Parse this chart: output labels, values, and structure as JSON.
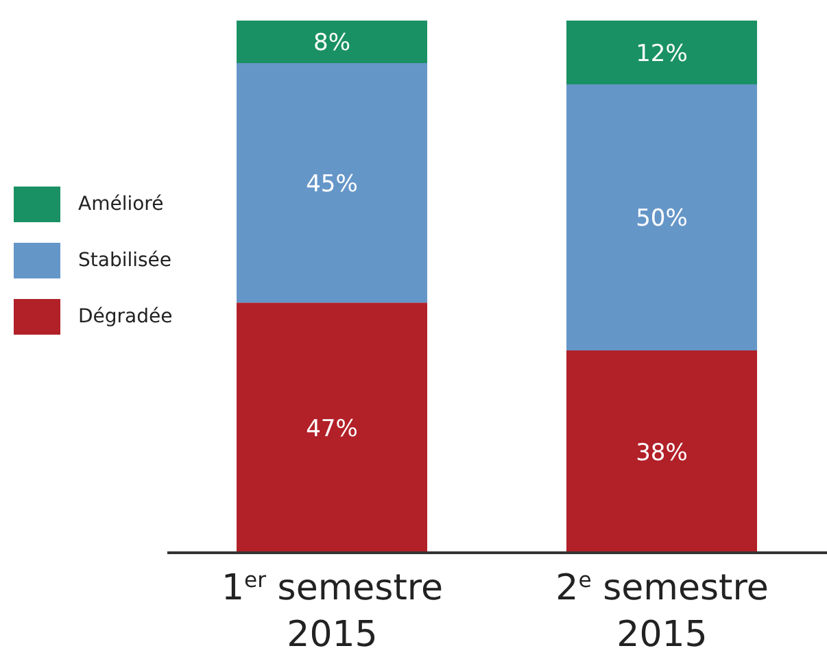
{
  "chart_data": {
    "type": "bar",
    "stacked": true,
    "legend": "left",
    "categories": [
      "1$^{er}$ semestre 2015",
      "2$^{e}$ semestre 2015"
    ],
    "series": [
      {
        "name": "Dégradée",
        "color": "#b22028",
        "values": [
          47,
          38
        ],
        "value_labels": [
          "47%",
          "38%"
        ]
      },
      {
        "name": "Stabilisée",
        "color": "#6596c8",
        "values": [
          45,
          50
        ],
        "value_labels": [
          "45%",
          "50%"
        ]
      },
      {
        "name": "Amélioré",
        "color": "#1a9164",
        "values": [
          8,
          12
        ],
        "value_labels": [
          "8%",
          "12%"
        ]
      }
    ]
  }
}
